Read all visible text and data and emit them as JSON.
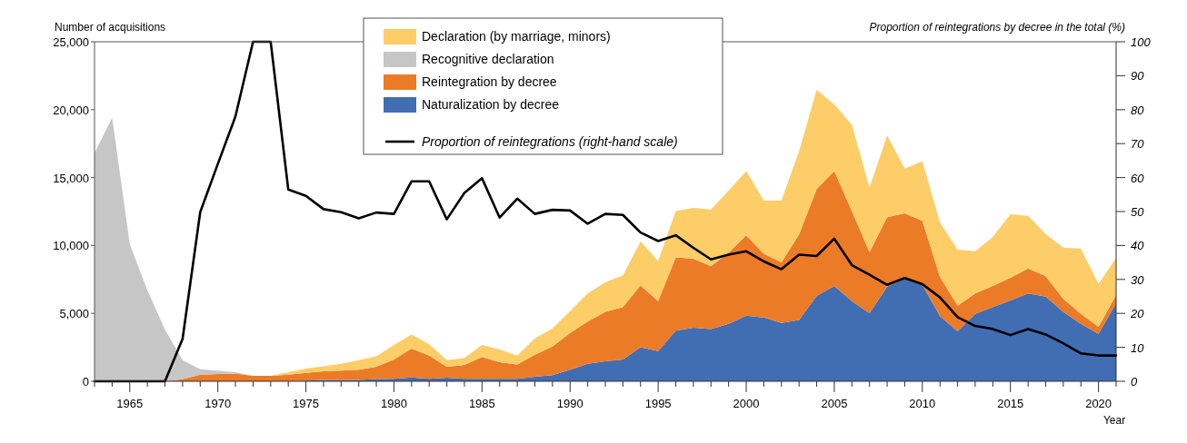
{
  "chart_data": {
    "type": "area",
    "stacked": true,
    "ylabel": "Number of acquisitions",
    "y2label": "Proportion of reintegrations by decree in the total (%)",
    "xlabel": "Year",
    "legend": "top",
    "x": [
      1963,
      1964,
      1965,
      1966,
      1967,
      1968,
      1969,
      1970,
      1971,
      1972,
      1973,
      1974,
      1975,
      1976,
      1977,
      1978,
      1979,
      1980,
      1981,
      1982,
      1983,
      1984,
      1985,
      1986,
      1987,
      1988,
      1989,
      1990,
      1991,
      1992,
      1993,
      1994,
      1995,
      1996,
      1997,
      1998,
      1999,
      2000,
      2001,
      2002,
      2003,
      2004,
      2005,
      2006,
      2007,
      2008,
      2009,
      2010,
      2011,
      2012,
      2013,
      2014,
      2015,
      2016,
      2017,
      2018,
      2019,
      2020,
      2021
    ],
    "xlim": [
      1963,
      2021
    ],
    "xticks": [
      {
        "value": 1963,
        "label": null
      },
      {
        "value": 1964,
        "label": null
      },
      1965,
      {
        "value": 1966,
        "label": null
      },
      {
        "value": 1967,
        "label": null
      },
      {
        "value": 1968,
        "label": null
      },
      {
        "value": 1969,
        "label": null
      },
      1970,
      {
        "value": 1971,
        "label": null
      },
      {
        "value": 1972,
        "label": null
      },
      {
        "value": 1973,
        "label": null
      },
      {
        "value": 1974,
        "label": null
      },
      1975,
      {
        "value": 1976,
        "label": null
      },
      {
        "value": 1977,
        "label": null
      },
      {
        "value": 1978,
        "label": null
      },
      {
        "value": 1979,
        "label": null
      },
      1980,
      {
        "value": 1981,
        "label": null
      },
      {
        "value": 1982,
        "label": null
      },
      {
        "value": 1983,
        "label": null
      },
      {
        "value": 1984,
        "label": null
      },
      1985,
      {
        "value": 1986,
        "label": null
      },
      {
        "value": 1987,
        "label": null
      },
      {
        "value": 1988,
        "label": null
      },
      {
        "value": 1989,
        "label": null
      },
      1990,
      {
        "value": 1991,
        "label": null
      },
      {
        "value": 1992,
        "label": null
      },
      {
        "value": 1993,
        "label": null
      },
      {
        "value": 1994,
        "label": null
      },
      1995,
      {
        "value": 1996,
        "label": null
      },
      {
        "value": 1997,
        "label": null
      },
      {
        "value": 1998,
        "label": null
      },
      {
        "value": 1999,
        "label": null
      },
      2000,
      {
        "value": 2001,
        "label": null
      },
      {
        "value": 2002,
        "label": null
      },
      {
        "value": 2003,
        "label": null
      },
      {
        "value": 2004,
        "label": null
      },
      2005,
      {
        "value": 2006,
        "label": null
      },
      {
        "value": 2007,
        "label": null
      },
      {
        "value": 2008,
        "label": null
      },
      {
        "value": 2009,
        "label": null
      },
      2010,
      {
        "value": 2011,
        "label": null
      },
      {
        "value": 2012,
        "label": null
      },
      {
        "value": 2013,
        "label": null
      },
      {
        "value": 2014,
        "label": null
      },
      2015,
      {
        "value": 2016,
        "label": null
      },
      {
        "value": 2017,
        "label": null
      },
      {
        "value": 2018,
        "label": null
      },
      {
        "value": 2019,
        "label": null
      },
      2020,
      {
        "value": 2021,
        "label": null
      }
    ],
    "ylim": [
      0,
      25000
    ],
    "yticks": [
      0,
      {
        "value": 5000,
        "label": "5,000"
      },
      {
        "value": 10000,
        "label": "10,000"
      },
      {
        "value": 15000,
        "label": "15,000"
      },
      {
        "value": 20000,
        "label": "20,000"
      },
      {
        "value": 25000,
        "label": "25,000"
      }
    ],
    "y2lim": [
      0,
      100
    ],
    "y2ticks": [
      0,
      10,
      20,
      30,
      40,
      50,
      60,
      70,
      80,
      90,
      100
    ],
    "series": [
      {
        "name": "Naturalization by decree",
        "color": "#416db3",
        "values": [
          0,
          0,
          0,
          0,
          0,
          0,
          0,
          0,
          0,
          0,
          0,
          0,
          50,
          100,
          100,
          100,
          160,
          180,
          290,
          180,
          270,
          180,
          180,
          180,
          180,
          330,
          450,
          850,
          1290,
          1470,
          1600,
          2500,
          2230,
          3720,
          3940,
          3850,
          4230,
          4830,
          4700,
          4300,
          4520,
          6280,
          7020,
          5900,
          5010,
          6970,
          7530,
          7090,
          4790,
          3680,
          4970,
          5460,
          5950,
          6460,
          6240,
          5120,
          4230,
          3500,
          5750
        ]
      },
      {
        "name": "Reintegration by decree",
        "color": "#ec7b28",
        "values": [
          0,
          0,
          0,
          0,
          0,
          150,
          490,
          530,
          570,
          400,
          400,
          490,
          570,
          630,
          680,
          750,
          910,
          1420,
          2120,
          1710,
          800,
          1020,
          1600,
          1220,
          1050,
          1630,
          2110,
          2710,
          3100,
          3650,
          3860,
          4560,
          3670,
          5410,
          5080,
          4620,
          5240,
          5910,
          4700,
          4460,
          6290,
          7870,
          8460,
          6620,
          4500,
          5110,
          4840,
          4720,
          2900,
          1890,
          1490,
          1560,
          1670,
          1850,
          1490,
          940,
          740,
          510,
          600
        ]
      },
      {
        "name": "Recognitive declaration",
        "color": "#c6c6c6",
        "values": [
          16800,
          19400,
          10100,
          6700,
          3800,
          1400,
          400,
          250,
          100,
          0,
          0,
          0,
          0,
          0,
          0,
          0,
          0,
          0,
          0,
          0,
          0,
          0,
          0,
          0,
          0,
          0,
          0,
          0,
          0,
          0,
          0,
          0,
          0,
          0,
          0,
          0,
          0,
          0,
          0,
          0,
          0,
          0,
          0,
          0,
          0,
          0,
          0,
          0,
          0,
          0,
          0,
          0,
          0,
          0,
          0,
          0,
          0,
          0,
          0
        ]
      },
      {
        "name": "Declaration (by marriage, minors)",
        "color": "#fdcd67",
        "values": [
          0,
          0,
          0,
          0,
          0,
          0,
          0,
          0,
          0,
          0,
          0,
          180,
          320,
          380,
          510,
          710,
          760,
          1070,
          1040,
          830,
          490,
          520,
          890,
          940,
          660,
          1200,
          1340,
          1610,
          2070,
          2170,
          2340,
          3230,
          2950,
          3410,
          3750,
          4180,
          4570,
          4740,
          3900,
          4560,
          6120,
          7310,
          4910,
          6370,
          4750,
          6010,
          3290,
          4390,
          4010,
          4120,
          3120,
          3610,
          4680,
          3880,
          3120,
          3790,
          4790,
          3160,
          2720
        ]
      },
      {
        "name": "Proportion of reintegrations (right-hand scale)",
        "type": "line",
        "axis": "y2",
        "color": "#000000",
        "values": [
          0,
          0,
          0,
          0,
          0,
          12.5,
          49.8,
          64,
          78,
          100,
          100,
          56.5,
          54.6,
          50.7,
          49.8,
          48,
          49.7,
          49.3,
          58.9,
          58.9,
          47.7,
          55.5,
          59.8,
          48.2,
          53.8,
          49.3,
          50.5,
          50.3,
          46.4,
          49.3,
          49,
          43.8,
          41.3,
          43,
          39.3,
          35.9,
          37.3,
          38.3,
          35.3,
          33,
          37.3,
          36.9,
          42,
          34.2,
          31.4,
          28.4,
          30.4,
          28.6,
          24.7,
          18.9,
          16.3,
          15.4,
          13.6,
          15.4,
          13.8,
          11.2,
          8.2,
          7.6,
          7.6
        ]
      }
    ]
  }
}
